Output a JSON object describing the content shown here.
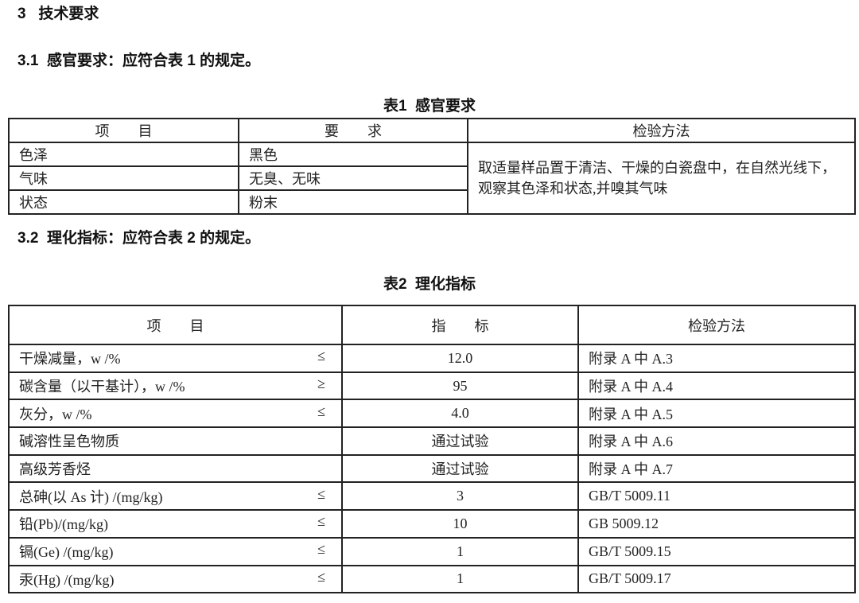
{
  "section": {
    "number": "3",
    "title": "技术要求"
  },
  "s31": {
    "text": "3.1  感官要求：应符合表 1 的规定。"
  },
  "table1": {
    "caption": "表1  感官要求",
    "headers": [
      "项　　目",
      "要　　求",
      "检验方法"
    ],
    "rows": [
      {
        "item": "色泽",
        "req": "黑色"
      },
      {
        "item": "气味",
        "req": "无臭、无味"
      },
      {
        "item": "状态",
        "req": "粉末"
      }
    ],
    "method": "取适量样品置于清洁、干燥的白瓷盘中，在自然光线下，观察其色泽和状态,并嗅其气味"
  },
  "s32": {
    "text": "3.2  理化指标：应符合表 2 的规定。"
  },
  "table2": {
    "caption": "表2  理化指标",
    "headers": [
      "项　　目",
      "指　　标",
      "检验方法"
    ],
    "rows": [
      {
        "item": "干燥减量，w /%",
        "sym": "≤",
        "value": "12.0",
        "method": "附录 A 中 A.3"
      },
      {
        "item": "碳含量（以干基计），w /%",
        "sym": "≥",
        "value": "95",
        "method": "附录 A 中 A.4"
      },
      {
        "item": "灰分，w /%",
        "sym": "≤",
        "value": "4.0",
        "method": "附录 A 中 A.5"
      },
      {
        "item": "碱溶性呈色物质",
        "sym": "",
        "value": "通过试验",
        "method": "附录 A 中 A.6"
      },
      {
        "item": "高级芳香烃",
        "sym": "",
        "value": "通过试验",
        "method": "附录 A 中 A.7"
      },
      {
        "item": "总砷(以 As 计) /(mg/kg)",
        "sym": "≤",
        "value": "3",
        "method": "GB/T 5009.11"
      },
      {
        "item": "铅(Pb)/(mg/kg)",
        "sym": "≤",
        "value": "10",
        "method": "GB 5009.12"
      },
      {
        "item": "镉(Ge) /(mg/kg)",
        "sym": "≤",
        "value": "1",
        "method": "GB/T 5009.15"
      },
      {
        "item": "汞(Hg) /(mg/kg)",
        "sym": "≤",
        "value": "1",
        "method": "GB/T 5009.17"
      }
    ]
  }
}
